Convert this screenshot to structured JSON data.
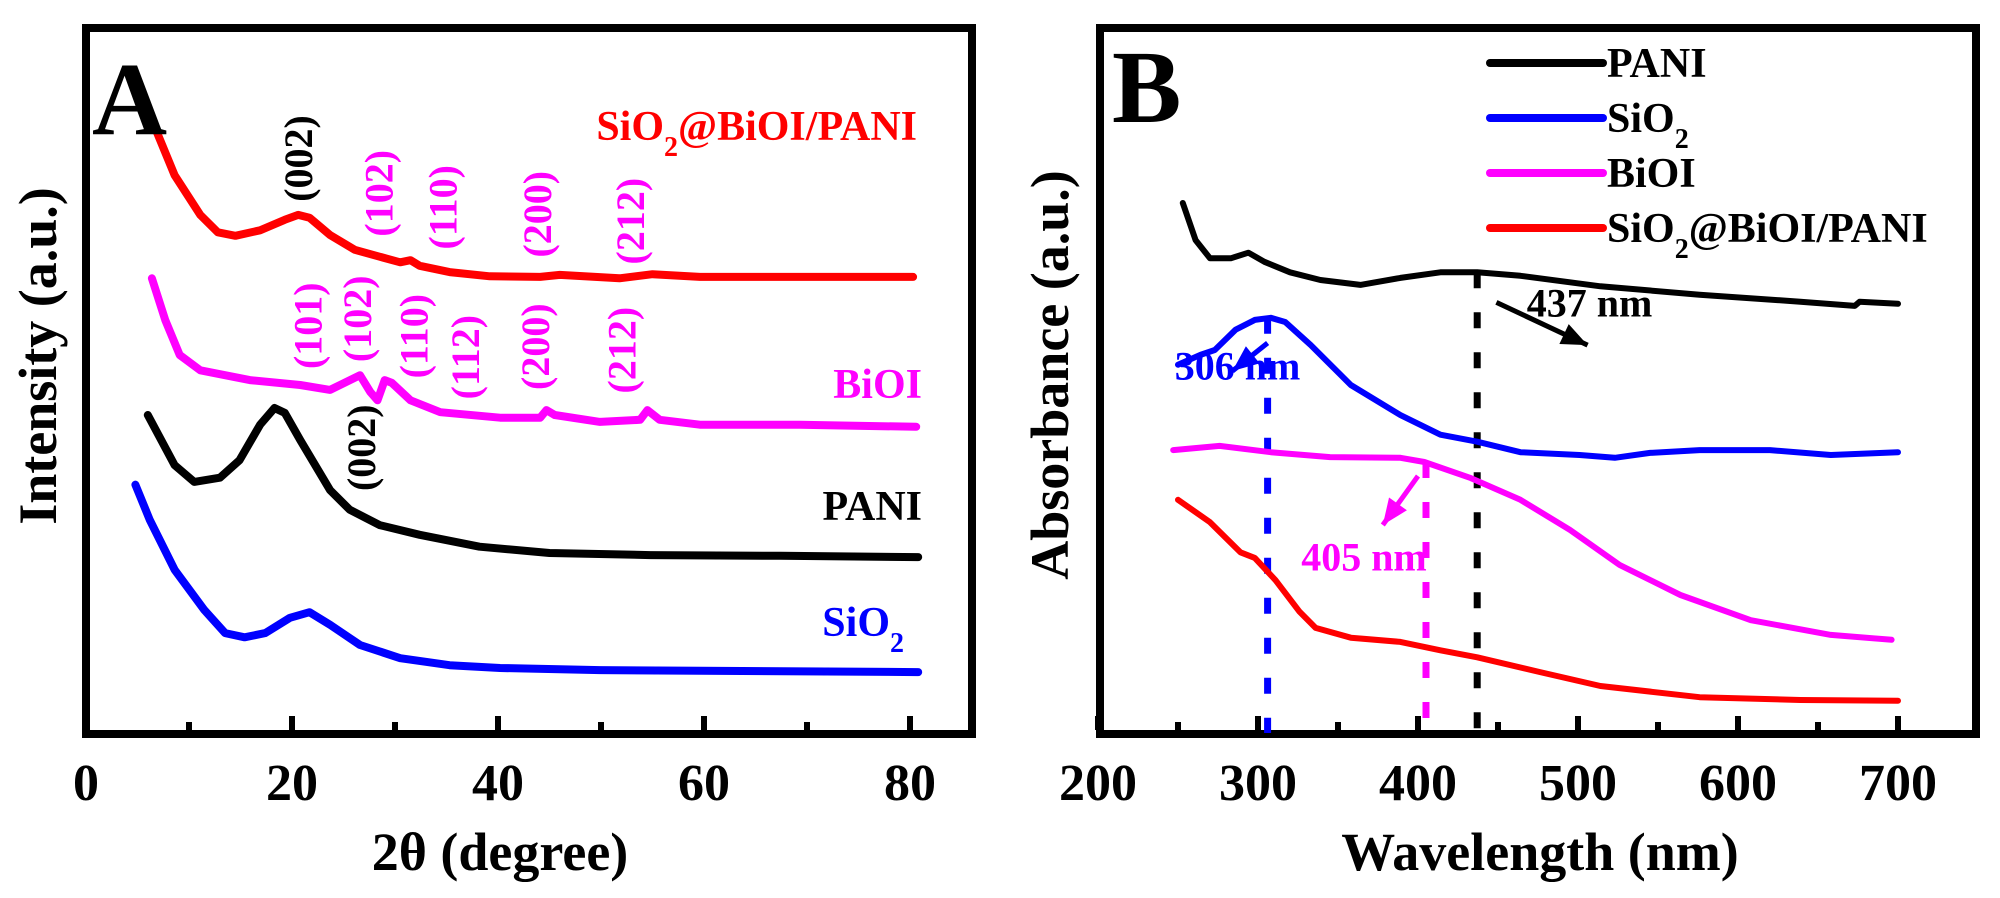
{
  "chart_data": [
    {
      "panel": "A",
      "type": "line",
      "title": "",
      "xlabel": "2θ (degree)",
      "ylabel": "Intensity (a.u.)",
      "xlim": [
        0,
        86
      ],
      "ylim": [
        0,
        100
      ],
      "x_ticks": [
        0,
        20,
        40,
        60,
        80
      ],
      "x_tick_labels": [
        "0",
        "20",
        "40",
        "60",
        "80"
      ],
      "x_minor_ticks": [
        10,
        30,
        50,
        70
      ],
      "y_ticks": [],
      "grid": false,
      "series": [
        {
          "name": "SiO2@BiOI/PANI",
          "label_main": "SiO",
          "label_sub": "2",
          "label_rest": "@BiOI/PANI",
          "color": "#ff0000",
          "points": [
            [
              6.9,
              85.7
            ],
            [
              8.6,
              79.6
            ],
            [
              11.1,
              73.9
            ],
            [
              12.8,
              71.4
            ],
            [
              14.5,
              70.9
            ],
            [
              16.9,
              71.7
            ],
            [
              19.3,
              73.2
            ],
            [
              20.6,
              73.9
            ],
            [
              21.7,
              73.5
            ],
            [
              23.7,
              71.0
            ],
            [
              26.1,
              68.9
            ],
            [
              28.5,
              67.9
            ],
            [
              30.5,
              67.1
            ],
            [
              31.5,
              67.4
            ],
            [
              32.4,
              66.6
            ],
            [
              35.3,
              65.7
            ],
            [
              39.2,
              65.1
            ],
            [
              44.1,
              65.0
            ],
            [
              46.0,
              65.3
            ],
            [
              51.8,
              64.8
            ],
            [
              55.0,
              65.4
            ],
            [
              59.6,
              65.0
            ],
            [
              69.3,
              65.0
            ],
            [
              80.3,
              65.0
            ]
          ]
        },
        {
          "name": "BiOI",
          "label_main": "BiOI",
          "label_sub": "",
          "label_rest": "",
          "color": "#ff00ff",
          "points": [
            [
              6.4,
              64.8
            ],
            [
              7.7,
              58.8
            ],
            [
              9.1,
              53.8
            ],
            [
              11.1,
              51.6
            ],
            [
              15.9,
              50.2
            ],
            [
              20.8,
              49.5
            ],
            [
              23.7,
              48.8
            ],
            [
              26.6,
              50.9
            ],
            [
              27.6,
              48.5
            ],
            [
              28.3,
              47.3
            ],
            [
              29.0,
              50.2
            ],
            [
              29.7,
              49.8
            ],
            [
              31.5,
              47.3
            ],
            [
              34.4,
              45.6
            ],
            [
              40.2,
              44.8
            ],
            [
              44.1,
              44.8
            ],
            [
              44.7,
              45.9
            ],
            [
              45.5,
              45.2
            ],
            [
              49.9,
              44.2
            ],
            [
              53.8,
              44.5
            ],
            [
              54.5,
              45.9
            ],
            [
              55.7,
              44.5
            ],
            [
              59.6,
              43.8
            ],
            [
              69.3,
              43.8
            ],
            [
              80.6,
              43.5
            ]
          ]
        },
        {
          "name": "PANI",
          "label_main": "PANI",
          "label_sub": "",
          "label_rest": "",
          "color": "#000000",
          "points": [
            [
              6.0,
              45.2
            ],
            [
              8.6,
              38.0
            ],
            [
              10.5,
              35.6
            ],
            [
              13.0,
              36.2
            ],
            [
              14.9,
              38.7
            ],
            [
              16.9,
              43.8
            ],
            [
              18.3,
              46.2
            ],
            [
              19.3,
              45.5
            ],
            [
              20.8,
              41.6
            ],
            [
              23.7,
              34.4
            ],
            [
              25.6,
              31.6
            ],
            [
              28.5,
              29.4
            ],
            [
              32.4,
              28.0
            ],
            [
              38.2,
              26.3
            ],
            [
              45.0,
              25.4
            ],
            [
              54.8,
              25.1
            ],
            [
              67.4,
              25.0
            ],
            [
              80.8,
              24.8
            ]
          ]
        },
        {
          "name": "SiO2",
          "label_main": "SiO",
          "label_sub": "2",
          "label_rest": "",
          "color": "#0000ff",
          "points": [
            [
              4.8,
              35.2
            ],
            [
              6.2,
              30.1
            ],
            [
              8.6,
              23.0
            ],
            [
              11.5,
              17.2
            ],
            [
              13.5,
              13.9
            ],
            [
              15.4,
              13.3
            ],
            [
              17.4,
              13.9
            ],
            [
              19.8,
              16.1
            ],
            [
              21.7,
              16.9
            ],
            [
              23.7,
              15.1
            ],
            [
              26.6,
              12.2
            ],
            [
              30.5,
              10.3
            ],
            [
              35.3,
              9.3
            ],
            [
              40.2,
              8.9
            ],
            [
              49.9,
              8.6
            ],
            [
              59.6,
              8.5
            ],
            [
              80.8,
              8.3
            ]
          ]
        }
      ],
      "annotations": [
        {
          "text": "(002)",
          "color": "#000000",
          "x": 20.6,
          "y": 82.0,
          "series": "SiO2@BiOI/PANI"
        },
        {
          "text": "(102)",
          "color": "#ff00ff",
          "x": 28.4,
          "y": 77.0,
          "series": "SiO2@BiOI/PANI"
        },
        {
          "text": "(110)",
          "color": "#ff00ff",
          "x": 34.6,
          "y": 75.0,
          "series": "SiO2@BiOI/PANI"
        },
        {
          "text": "(200)",
          "color": "#ff00ff",
          "x": 43.8,
          "y": 74.0,
          "series": "SiO2@BiOI/PANI"
        },
        {
          "text": "(212)",
          "color": "#ff00ff",
          "x": 52.8,
          "y": 73.0,
          "series": "SiO2@BiOI/PANI"
        },
        {
          "text": "(101)",
          "color": "#ff00ff",
          "x": 21.5,
          "y": 58.0,
          "series": "BiOI"
        },
        {
          "text": "(102)",
          "color": "#ff00ff",
          "x": 26.3,
          "y": 59.0,
          "series": "BiOI"
        },
        {
          "text": "(110)",
          "color": "#ff00ff",
          "x": 31.8,
          "y": 56.5,
          "series": "BiOI"
        },
        {
          "text": "(112)",
          "color": "#ff00ff",
          "x": 36.8,
          "y": 53.5,
          "series": "BiOI"
        },
        {
          "text": "(200)",
          "color": "#ff00ff",
          "x": 43.6,
          "y": 55.0,
          "series": "BiOI"
        },
        {
          "text": "(212)",
          "color": "#ff00ff",
          "x": 52.0,
          "y": 54.5,
          "series": "BiOI"
        },
        {
          "text": "(002)",
          "color": "#000000",
          "x": 26.7,
          "y": 40.5,
          "series": "PANI"
        }
      ],
      "panel_letter": "A"
    },
    {
      "panel": "B",
      "type": "line",
      "title": "",
      "xlabel": "Wavelength (nm)",
      "ylabel": "Absorbance (a.u.)",
      "xlim": [
        200,
        725
      ],
      "ylim": [
        0,
        100
      ],
      "x_ticks": [
        200,
        300,
        400,
        500,
        600,
        700
      ],
      "x_tick_labels": [
        "200",
        "300",
        "400",
        "500",
        "600",
        "700"
      ],
      "x_minor_ticks": [
        250,
        350,
        450,
        550,
        650
      ],
      "y_ticks": [],
      "grid": false,
      "legend": {
        "position": "top-right",
        "entries": [
          {
            "main": "PANI",
            "sub": "",
            "rest": "",
            "color": "#000000"
          },
          {
            "main": "SiO",
            "sub": "2",
            "rest": "",
            "color": "#0000ff"
          },
          {
            "main": "BiOI",
            "sub": "",
            "rest": "",
            "color": "#ff00ff"
          },
          {
            "main": "SiO",
            "sub": "2",
            "rest": "@BiOI/PANI",
            "color": "#ff0000"
          }
        ]
      },
      "series": [
        {
          "name": "PANI",
          "color": "#000000",
          "points": [
            [
              253,
              76.0
            ],
            [
              261,
              70.7
            ],
            [
              270,
              68.1
            ],
            [
              283,
              68.1
            ],
            [
              294,
              68.9
            ],
            [
              304,
              67.6
            ],
            [
              320,
              66.1
            ],
            [
              339,
              65.0
            ],
            [
              364,
              64.3
            ],
            [
              389,
              65.3
            ],
            [
              414,
              66.1
            ],
            [
              437,
              66.1
            ],
            [
              464,
              65.6
            ],
            [
              514,
              64.1
            ],
            [
              576,
              62.9
            ],
            [
              639,
              61.9
            ],
            [
              673,
              61.3
            ],
            [
              676,
              61.9
            ],
            [
              700,
              61.6
            ]
          ]
        },
        {
          "name": "SiO2",
          "color": "#0000ff",
          "points": [
            [
              250,
              52.9
            ],
            [
              264,
              54.3
            ],
            [
              273,
              55.0
            ],
            [
              286,
              57.9
            ],
            [
              298,
              59.3
            ],
            [
              308,
              59.6
            ],
            [
              317,
              59.0
            ],
            [
              333,
              55.7
            ],
            [
              358,
              50.0
            ],
            [
              389,
              45.7
            ],
            [
              414,
              42.9
            ],
            [
              437,
              41.9
            ],
            [
              464,
              40.4
            ],
            [
              501,
              40.0
            ],
            [
              523,
              39.6
            ],
            [
              545,
              40.3
            ],
            [
              576,
              40.7
            ],
            [
              620,
              40.7
            ],
            [
              658,
              40.0
            ],
            [
              700,
              40.4
            ]
          ]
        },
        {
          "name": "BiOI",
          "color": "#ff00ff",
          "points": [
            [
              247,
              40.7
            ],
            [
              276,
              41.3
            ],
            [
              308,
              40.4
            ],
            [
              345,
              39.7
            ],
            [
              389,
              39.6
            ],
            [
              404,
              39.0
            ],
            [
              433,
              36.7
            ],
            [
              464,
              33.6
            ],
            [
              495,
              29.3
            ],
            [
              526,
              24.3
            ],
            [
              564,
              20.0
            ],
            [
              608,
              16.4
            ],
            [
              658,
              14.3
            ],
            [
              696,
              13.6
            ]
          ]
        },
        {
          "name": "SiO2@BiOI/PANI",
          "color": "#ff0000",
          "points": [
            [
              250,
              33.6
            ],
            [
              270,
              30.4
            ],
            [
              289,
              26.1
            ],
            [
              298,
              25.3
            ],
            [
              311,
              22.1
            ],
            [
              326,
              17.6
            ],
            [
              336,
              15.3
            ],
            [
              358,
              13.9
            ],
            [
              389,
              13.3
            ],
            [
              414,
              12.1
            ],
            [
              437,
              11.1
            ],
            [
              476,
              9.0
            ],
            [
              514,
              7.0
            ],
            [
              576,
              5.4
            ],
            [
              639,
              5.0
            ],
            [
              700,
              4.9
            ]
          ]
        }
      ],
      "markers": [
        {
          "wavelength": 306,
          "label": "306 nm",
          "color": "#0000ff",
          "series": "SiO2",
          "line_from": 59.6,
          "label_x": 248,
          "label_y": 50.8,
          "arrow": [
            [
              306,
              56.0
            ],
            [
              284,
              52.0
            ]
          ]
        },
        {
          "wavelength": 405,
          "label": "405 nm",
          "color": "#ff00ff",
          "series": "BiOI",
          "line_from": 39.0,
          "label_x": 327,
          "label_y": 23.5,
          "arrow": [
            [
              400,
              37.0
            ],
            [
              378,
              30.0
            ]
          ]
        },
        {
          "wavelength": 437,
          "label": "437 nm",
          "color": "#000000",
          "series": "PANI",
          "line_from": 66.1,
          "label_x": 468,
          "label_y": 59.8,
          "arrow": [
            [
              449,
              61.8
            ],
            [
              506,
              55.7
            ]
          ]
        }
      ],
      "panel_letter": "B"
    }
  ]
}
